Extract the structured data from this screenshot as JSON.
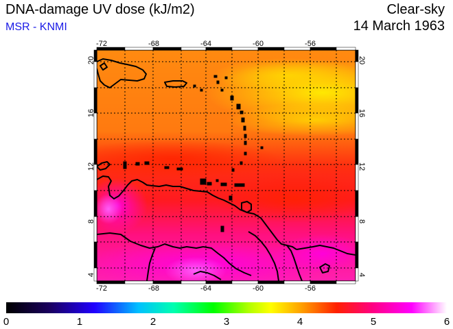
{
  "header": {
    "title": "DNA-damage UV dose (kJ/m2)",
    "source": "MSR - KNMI",
    "condition": "Clear-sky",
    "date": "14 March 1963"
  },
  "map": {
    "lon_ticks_top": [
      "-72",
      "-68",
      "-64",
      "-60",
      "-56"
    ],
    "lon_ticks_bottom": [
      "-72",
      "-68",
      "-64",
      "-60",
      "-56"
    ],
    "lat_ticks_left": [
      "20",
      "16",
      "12",
      "8",
      "4"
    ],
    "lat_ticks_right": [
      "20",
      "16",
      "12",
      "8",
      "4"
    ],
    "lon_range": [
      -72,
      -52
    ],
    "lat_range": [
      3.5,
      20.5
    ],
    "grid": "dotted"
  },
  "colorbar": {
    "labels": [
      "0",
      "1",
      "2",
      "3",
      "4",
      "5",
      "6"
    ],
    "range": [
      0,
      6
    ]
  },
  "colors": {
    "subtitle": "#1a1ae6",
    "coast": "#000000"
  }
}
